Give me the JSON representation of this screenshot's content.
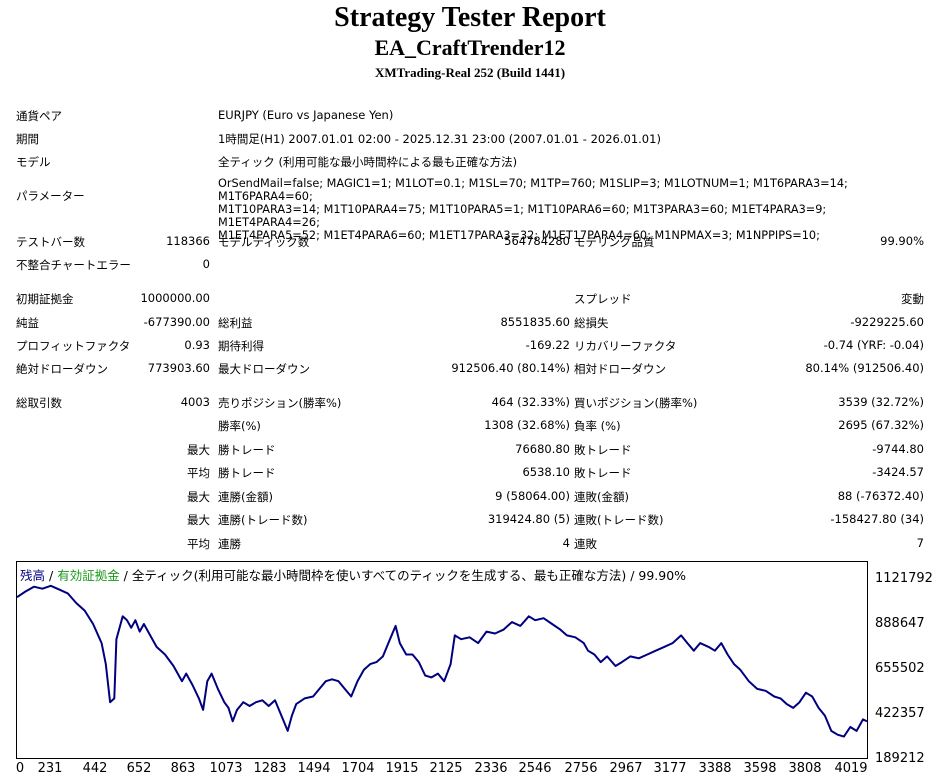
{
  "header": {
    "title": "Strategy Tester Report",
    "expert": "EA_CraftTrender12",
    "server_build": "XMTrading-Real 252 (Build 1441)"
  },
  "info": {
    "symbol_label": "通貨ペア",
    "symbol_value": "EURJPY (Euro vs Japanese Yen)",
    "period_label": "期間",
    "period_value": "1時間足(H1) 2007.01.01 02:00 - 2025.12.31 23:00 (2007.01.01 - 2026.01.01)",
    "model_label": "モデル",
    "model_value": "全ティック (利用可能な最小時間枠による最も正確な方法)",
    "params_label": "パラメーター",
    "params_lines": [
      "OrSendMail=false; MAGIC1=1; M1LOT=0.1; M1SL=70; M1TP=760; M1SLIP=3; M1LOTNUM=1; M1T6PARA3=14; M1T6PARA4=60;",
      "M1T10PARA3=14; M1T10PARA4=75; M1T10PARA5=1; M1T10PARA6=60; M1T3PARA3=60; M1ET4PARA3=9; M1ET4PARA4=26;",
      "M1ET4PARA5=52; M1ET4PARA6=60; M1ET17PARA3=32; M1ET17PARA4=60; M1NPMAX=3; M1NPPIPS=10;"
    ]
  },
  "stats": {
    "bars_label": "テストバー数",
    "bars_value": "118366",
    "ticks_label": "モデルティック数",
    "ticks_value": "564784280",
    "quality_label": "モデリング品質",
    "quality_value": "99.90%",
    "mismatch_label": "不整合チャートエラー",
    "mismatch_value": "0",
    "deposit_label": "初期証拠金",
    "deposit_value": "1000000.00",
    "spread_label": "スプレッド",
    "spread_value": "変動",
    "net_label": "純益",
    "net_value": "-677390.00",
    "gross_profit_label": "総利益",
    "gross_profit_value": "8551835.60",
    "gross_loss_label": "総損失",
    "gross_loss_value": "-9229225.60",
    "pf_label": "プロフィットファクタ",
    "pf_value": "0.93",
    "payoff_label": "期待利得",
    "payoff_value": "-169.22",
    "recovery_label": "リカバリーファクタ",
    "recovery_value": "-0.74 (YRF: -0.04)",
    "abs_dd_label": "絶対ドローダウン",
    "abs_dd_value": "773903.60",
    "max_dd_label": "最大ドローダウン",
    "max_dd_value": "912506.40 (80.14%)",
    "rel_dd_label": "相対ドローダウン",
    "rel_dd_value": "80.14% (912506.40)",
    "trades_label": "総取引数",
    "trades_value": "4003",
    "short_label": "売りポジション(勝率%)",
    "short_value": "464 (32.33%)",
    "long_label": "買いポジション(勝率%)",
    "long_value": "3539 (32.72%)",
    "winrate_label": "勝率(%)",
    "winrate_value": "1308 (32.68%)",
    "lossrate_label": "負率 (%)",
    "lossrate_value": "2695 (67.32%)",
    "max_label": "最大",
    "avg_label": "平均",
    "win_trade_label": "勝トレード",
    "loss_trade_label": "敗トレード",
    "max_win_trade_value": "76680.80",
    "max_loss_trade_value": "-9744.80",
    "avg_win_trade_value": "6538.10",
    "avg_loss_trade_value": "-3424.57",
    "consec_win_money_label": "連勝(金額)",
    "consec_win_money_value": "9 (58064.00)",
    "consec_loss_money_label": "連敗(金額)",
    "consec_loss_money_value": "88 (-76372.40)",
    "consec_win_trades_label": "連勝(トレード数)",
    "consec_win_trades_value": "319424.80 (5)",
    "consec_loss_trades_label": "連敗(トレード数)",
    "consec_loss_trades_value": "-158427.80 (34)",
    "avg_consec_win_label": "連勝",
    "avg_consec_win_value": "4",
    "avg_consec_loss_label": "連敗",
    "avg_consec_loss_value": "7"
  },
  "chart_data": {
    "type": "line",
    "legend_balance": "残高",
    "legend_sep1": " / ",
    "legend_equity": "有効証拠金",
    "legend_rest": " / 全ティック(利用可能な最小時間枠を使いすべてのティックを生成する、最も正確な方法) / 99.90%",
    "colors": {
      "balance": "#000080",
      "equity": "#1a9a1a"
    },
    "ylim": [
      189212,
      1121792
    ],
    "xlim": [
      0,
      4019
    ],
    "y_ticks": [
      "1121792",
      "888647",
      "655502",
      "422357",
      "189212"
    ],
    "x_ticks": [
      "0",
      "231",
      "442",
      "652",
      "863",
      "1073",
      "1283",
      "1494",
      "1704",
      "1915",
      "2125",
      "2336",
      "2546",
      "2756",
      "2967",
      "3177",
      "3388",
      "3598",
      "3808",
      "4019"
    ],
    "series": [
      {
        "values": [
          [
            0,
            1000000
          ],
          [
            40,
            1030000
          ],
          [
            80,
            1055000
          ],
          [
            120,
            1045000
          ],
          [
            160,
            1060000
          ],
          [
            200,
            1040000
          ],
          [
            240,
            1020000
          ],
          [
            280,
            970000
          ],
          [
            320,
            930000
          ],
          [
            360,
            860000
          ],
          [
            400,
            760000
          ],
          [
            420,
            650000
          ],
          [
            440,
            450000
          ],
          [
            460,
            470000
          ],
          [
            470,
            780000
          ],
          [
            490,
            860000
          ],
          [
            500,
            900000
          ],
          [
            520,
            880000
          ],
          [
            540,
            840000
          ],
          [
            560,
            880000
          ],
          [
            580,
            820000
          ],
          [
            600,
            860000
          ],
          [
            630,
            800000
          ],
          [
            660,
            740000
          ],
          [
            700,
            700000
          ],
          [
            740,
            640000
          ],
          [
            780,
            560000
          ],
          [
            800,
            600000
          ],
          [
            830,
            540000
          ],
          [
            860,
            470000
          ],
          [
            880,
            410000
          ],
          [
            900,
            560000
          ],
          [
            920,
            600000
          ],
          [
            950,
            520000
          ],
          [
            980,
            450000
          ],
          [
            1000,
            420000
          ],
          [
            1020,
            350000
          ],
          [
            1040,
            410000
          ],
          [
            1070,
            450000
          ],
          [
            1100,
            430000
          ],
          [
            1130,
            450000
          ],
          [
            1160,
            460000
          ],
          [
            1190,
            430000
          ],
          [
            1220,
            460000
          ],
          [
            1250,
            380000
          ],
          [
            1280,
            300000
          ],
          [
            1300,
            380000
          ],
          [
            1320,
            440000
          ],
          [
            1360,
            470000
          ],
          [
            1400,
            480000
          ],
          [
            1430,
            520000
          ],
          [
            1460,
            560000
          ],
          [
            1490,
            570000
          ],
          [
            1520,
            560000
          ],
          [
            1550,
            520000
          ],
          [
            1580,
            480000
          ],
          [
            1610,
            560000
          ],
          [
            1640,
            620000
          ],
          [
            1670,
            650000
          ],
          [
            1700,
            660000
          ],
          [
            1730,
            690000
          ],
          [
            1760,
            770000
          ],
          [
            1790,
            850000
          ],
          [
            1810,
            760000
          ],
          [
            1840,
            700000
          ],
          [
            1870,
            700000
          ],
          [
            1900,
            660000
          ],
          [
            1930,
            590000
          ],
          [
            1960,
            580000
          ],
          [
            1990,
            600000
          ],
          [
            2020,
            560000
          ],
          [
            2050,
            650000
          ],
          [
            2070,
            800000
          ],
          [
            2100,
            780000
          ],
          [
            2140,
            790000
          ],
          [
            2180,
            760000
          ],
          [
            2220,
            820000
          ],
          [
            2260,
            810000
          ],
          [
            2300,
            830000
          ],
          [
            2340,
            870000
          ],
          [
            2380,
            850000
          ],
          [
            2420,
            900000
          ],
          [
            2450,
            880000
          ],
          [
            2490,
            890000
          ],
          [
            2530,
            860000
          ],
          [
            2570,
            830000
          ],
          [
            2600,
            800000
          ],
          [
            2640,
            790000
          ],
          [
            2680,
            760000
          ],
          [
            2700,
            720000
          ],
          [
            2730,
            700000
          ],
          [
            2760,
            660000
          ],
          [
            2790,
            690000
          ],
          [
            2830,
            640000
          ],
          [
            2860,
            660000
          ],
          [
            2900,
            690000
          ],
          [
            2940,
            680000
          ],
          [
            2980,
            700000
          ],
          [
            3020,
            720000
          ],
          [
            3060,
            740000
          ],
          [
            3100,
            760000
          ],
          [
            3140,
            800000
          ],
          [
            3170,
            760000
          ],
          [
            3200,
            720000
          ],
          [
            3230,
            760000
          ],
          [
            3270,
            740000
          ],
          [
            3300,
            720000
          ],
          [
            3330,
            760000
          ],
          [
            3360,
            700000
          ],
          [
            3390,
            650000
          ],
          [
            3420,
            620000
          ],
          [
            3460,
            560000
          ],
          [
            3500,
            520000
          ],
          [
            3540,
            510000
          ],
          [
            3580,
            480000
          ],
          [
            3610,
            470000
          ],
          [
            3640,
            440000
          ],
          [
            3670,
            420000
          ],
          [
            3700,
            450000
          ],
          [
            3730,
            500000
          ],
          [
            3760,
            480000
          ],
          [
            3790,
            420000
          ],
          [
            3820,
            380000
          ],
          [
            3850,
            300000
          ],
          [
            3880,
            280000
          ],
          [
            3910,
            270000
          ],
          [
            3940,
            320000
          ],
          [
            3970,
            300000
          ],
          [
            4000,
            360000
          ],
          [
            4019,
            350000
          ]
        ]
      }
    ]
  }
}
